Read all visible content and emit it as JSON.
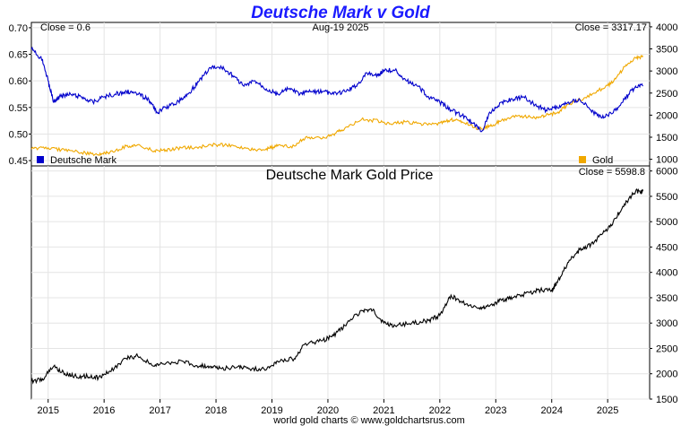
{
  "chart_data": [
    {
      "type": "line",
      "title": "Deutsche Mark v Gold",
      "date_label": "Aug-19  2025",
      "left_close_label": "Close = 0.6",
      "right_close_label": "Close = 3317.17",
      "y_left_lim": [
        0.44,
        0.71
      ],
      "y_left_ticks": [
        "0.45",
        "0.50",
        "0.55",
        "0.60",
        "0.65",
        "0.70"
      ],
      "y_right_lim": [
        850,
        4100
      ],
      "y_right_ticks": [
        "1000",
        "1500",
        "2000",
        "2500",
        "3000",
        "3500",
        "4000"
      ],
      "series": [
        {
          "name": "Deutsche Mark",
          "axis": "left",
          "color": "#0000cc",
          "x": [
            2014.7,
            2014.9,
            2015.0,
            2015.1,
            2015.2,
            2015.4,
            2015.6,
            2015.8,
            2016.0,
            2016.2,
            2016.4,
            2016.6,
            2016.8,
            2016.95,
            2017.1,
            2017.3,
            2017.5,
            2017.7,
            2017.9,
            2018.1,
            2018.3,
            2018.5,
            2018.7,
            2018.9,
            2019.1,
            2019.3,
            2019.5,
            2019.7,
            2019.9,
            2020.1,
            2020.3,
            2020.5,
            2020.7,
            2020.9,
            2021.0,
            2021.2,
            2021.4,
            2021.6,
            2021.8,
            2022.0,
            2022.2,
            2022.4,
            2022.6,
            2022.75,
            2022.9,
            2023.1,
            2023.3,
            2023.5,
            2023.7,
            2023.9,
            2024.1,
            2024.3,
            2024.5,
            2024.7,
            2024.9,
            2025.1,
            2025.3,
            2025.5,
            2025.63
          ],
          "values": [
            0.66,
            0.64,
            0.6,
            0.56,
            0.57,
            0.575,
            0.57,
            0.56,
            0.57,
            0.575,
            0.58,
            0.575,
            0.565,
            0.54,
            0.55,
            0.56,
            0.575,
            0.6,
            0.625,
            0.625,
            0.61,
            0.59,
            0.6,
            0.585,
            0.575,
            0.585,
            0.575,
            0.58,
            0.58,
            0.575,
            0.58,
            0.59,
            0.615,
            0.61,
            0.62,
            0.62,
            0.6,
            0.59,
            0.57,
            0.56,
            0.545,
            0.535,
            0.52,
            0.505,
            0.54,
            0.56,
            0.565,
            0.57,
            0.555,
            0.545,
            0.55,
            0.56,
            0.565,
            0.545,
            0.53,
            0.54,
            0.565,
            0.59,
            0.59
          ]
        },
        {
          "name": "Gold",
          "axis": "right",
          "color": "#f0a800",
          "x": [
            2014.7,
            2015.0,
            2015.3,
            2015.6,
            2015.9,
            2016.1,
            2016.4,
            2016.6,
            2016.9,
            2017.1,
            2017.4,
            2017.7,
            2018.0,
            2018.3,
            2018.6,
            2018.9,
            2019.1,
            2019.4,
            2019.6,
            2019.9,
            2020.1,
            2020.3,
            2020.6,
            2020.9,
            2021.1,
            2021.4,
            2021.7,
            2022.0,
            2022.2,
            2022.4,
            2022.7,
            2022.9,
            2023.1,
            2023.4,
            2023.7,
            2023.9,
            2024.1,
            2024.3,
            2024.6,
            2024.9,
            2025.1,
            2025.3,
            2025.5,
            2025.63
          ],
          "values": [
            1230,
            1260,
            1200,
            1150,
            1100,
            1150,
            1300,
            1330,
            1190,
            1210,
            1260,
            1280,
            1330,
            1320,
            1210,
            1240,
            1300,
            1300,
            1500,
            1470,
            1570,
            1700,
            1900,
            1870,
            1800,
            1850,
            1780,
            1820,
            1900,
            1850,
            1680,
            1750,
            1880,
            1990,
            1930,
            2000,
            2050,
            2250,
            2400,
            2600,
            2750,
            3100,
            3300,
            3317
          ]
        }
      ]
    },
    {
      "type": "line",
      "title": "Deutsche Mark Gold Price",
      "close_label": "Close = 5598.8",
      "ylim": [
        1500,
        6100
      ],
      "y_ticks": [
        "1500",
        "2000",
        "2500",
        "3000",
        "3500",
        "4000",
        "4500",
        "5000",
        "5500",
        "6000"
      ],
      "series": [
        {
          "color": "#000000",
          "x": [
            2014.7,
            2014.9,
            2015.1,
            2015.3,
            2015.5,
            2015.7,
            2015.9,
            2016.1,
            2016.4,
            2016.6,
            2016.9,
            2017.1,
            2017.4,
            2017.7,
            2017.9,
            2018.1,
            2018.4,
            2018.6,
            2018.9,
            2019.1,
            2019.4,
            2019.6,
            2019.9,
            2020.1,
            2020.3,
            2020.6,
            2020.8,
            2021.0,
            2021.2,
            2021.5,
            2021.8,
            2022.0,
            2022.2,
            2022.4,
            2022.7,
            2022.9,
            2023.1,
            2023.3,
            2023.6,
            2023.8,
            2024.0,
            2024.1,
            2024.3,
            2024.5,
            2024.7,
            2024.9,
            2025.1,
            2025.3,
            2025.5,
            2025.63
          ],
          "values": [
            1850,
            1900,
            2150,
            2000,
            1950,
            1950,
            1920,
            2050,
            2300,
            2350,
            2150,
            2200,
            2250,
            2150,
            2150,
            2100,
            2150,
            2100,
            2080,
            2250,
            2300,
            2600,
            2650,
            2750,
            2950,
            3250,
            3250,
            3000,
            2950,
            3000,
            3050,
            3150,
            3550,
            3400,
            3300,
            3350,
            3450,
            3500,
            3600,
            3650,
            3650,
            3800,
            4200,
            4450,
            4550,
            4750,
            5000,
            5350,
            5600,
            5599
          ]
        }
      ]
    }
  ],
  "x_axis": {
    "lim": [
      2014.7,
      2025.75
    ],
    "tick_labels": [
      "2015",
      "2016",
      "2017",
      "2018",
      "2019",
      "2020",
      "2021",
      "2022",
      "2023",
      "2024",
      "2025"
    ]
  },
  "legend": [
    {
      "name": "Deutsche Mark",
      "color": "#0000cc"
    },
    {
      "name": "Gold",
      "color": "#f0a800"
    }
  ],
  "footer": "world gold charts © www.goldchartsrus.com"
}
